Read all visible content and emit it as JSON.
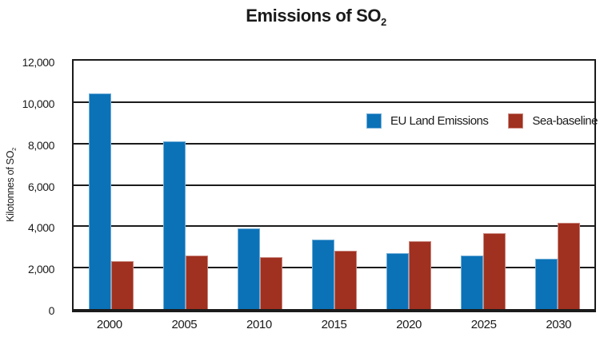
{
  "chart_data": {
    "type": "bar",
    "title": {
      "main": "Emissions of SO",
      "sub": "2"
    },
    "ylabel": {
      "main": "Kilotonnes of SO",
      "sub": "2"
    },
    "xlabel": "",
    "categories": [
      "2000",
      "2005",
      "2010",
      "2015",
      "2020",
      "2025",
      "2030"
    ],
    "series": [
      {
        "name": "EU Land Emissions",
        "color": "#0B72B8",
        "values": [
          10400,
          8100,
          3890,
          3340,
          2700,
          2590,
          2430
        ]
      },
      {
        "name": "Sea-baseline",
        "color": "#A0301F",
        "values": [
          2300,
          2580,
          2500,
          2800,
          3270,
          3650,
          4150
        ]
      }
    ],
    "ylim": [
      0,
      12000
    ],
    "ytick_step": 2000,
    "ytick_labels": [
      "0",
      "2,000",
      "4,000",
      "6,000",
      "8,000",
      "10,000",
      "12,000"
    ],
    "grid": true,
    "legend_position": "inside-top-right"
  },
  "colors": {
    "axis": "#1B1B1B",
    "background": "#FFFFFF",
    "text": "#1A1A1A"
  }
}
